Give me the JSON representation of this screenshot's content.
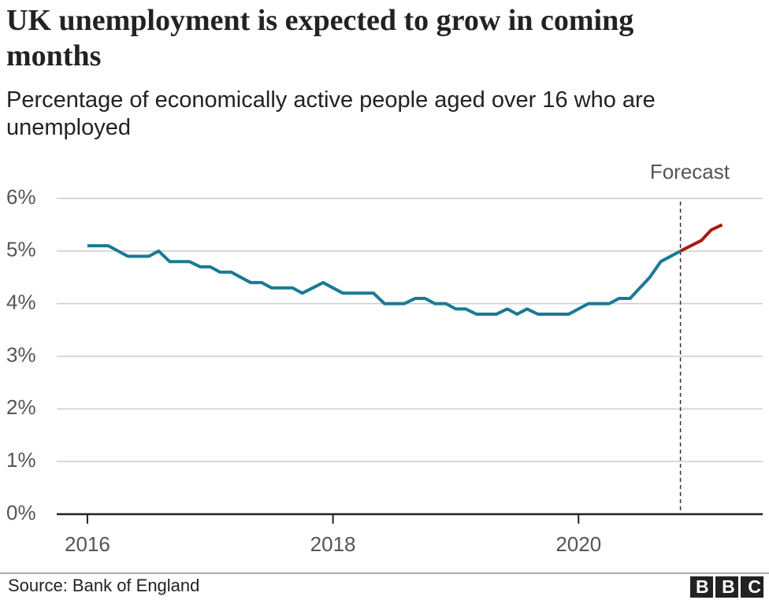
{
  "chart_data": {
    "type": "line",
    "title": "UK unemployment is expected to grow in coming months",
    "subtitle": "Percentage of economically active people aged over 16 who are unemployed",
    "source": "Source: Bank of England",
    "logo": "BBC",
    "annotation": {
      "text": "Forecast",
      "x": 2020.83
    },
    "series": [
      {
        "color": "#1a7a94",
        "x": [
          2016.0,
          2016.17,
          2016.33,
          2016.5,
          2016.58,
          2016.67,
          2016.83,
          2016.92,
          2017.0,
          2017.08,
          2017.17,
          2017.33,
          2017.42,
          2017.5,
          2017.67,
          2017.75,
          2017.92,
          2018.08,
          2018.33,
          2018.42,
          2018.58,
          2018.67,
          2018.75,
          2018.83,
          2018.92,
          2019.0,
          2019.08,
          2019.17,
          2019.33,
          2019.42,
          2019.5,
          2019.58,
          2019.67,
          2019.92,
          2020.08,
          2020.25,
          2020.33,
          2020.42,
          2020.58,
          2020.67,
          2020.83
        ],
        "values": [
          5.1,
          5.1,
          4.9,
          4.9,
          5.0,
          4.8,
          4.8,
          4.7,
          4.7,
          4.6,
          4.6,
          4.4,
          4.4,
          4.3,
          4.3,
          4.2,
          4.4,
          4.2,
          4.2,
          4.0,
          4.0,
          4.1,
          4.1,
          4.0,
          4.0,
          3.9,
          3.9,
          3.8,
          3.8,
          3.9,
          3.8,
          3.9,
          3.8,
          3.8,
          4.0,
          4.0,
          4.1,
          4.1,
          4.5,
          4.8,
          5.0
        ]
      },
      {
        "color": "#a51d10",
        "x": [
          2020.83,
          2021.0,
          2021.08,
          2021.17
        ],
        "values": [
          5.0,
          5.2,
          5.4,
          5.5
        ]
      }
    ],
    "xlim": [
      2015.75,
      2021.5
    ],
    "xticks": [
      2016,
      2018,
      2020
    ],
    "ylim": [
      0,
      6
    ],
    "yticks": [
      {
        "value": 0,
        "label": "0%"
      },
      {
        "value": 1,
        "label": "1%"
      },
      {
        "value": 2,
        "label": "2%"
      },
      {
        "value": 3,
        "label": "3%"
      },
      {
        "value": 4,
        "label": "4%"
      },
      {
        "value": 5,
        "label": "5%"
      },
      {
        "value": 6,
        "label": "6%"
      }
    ],
    "grid": true
  }
}
